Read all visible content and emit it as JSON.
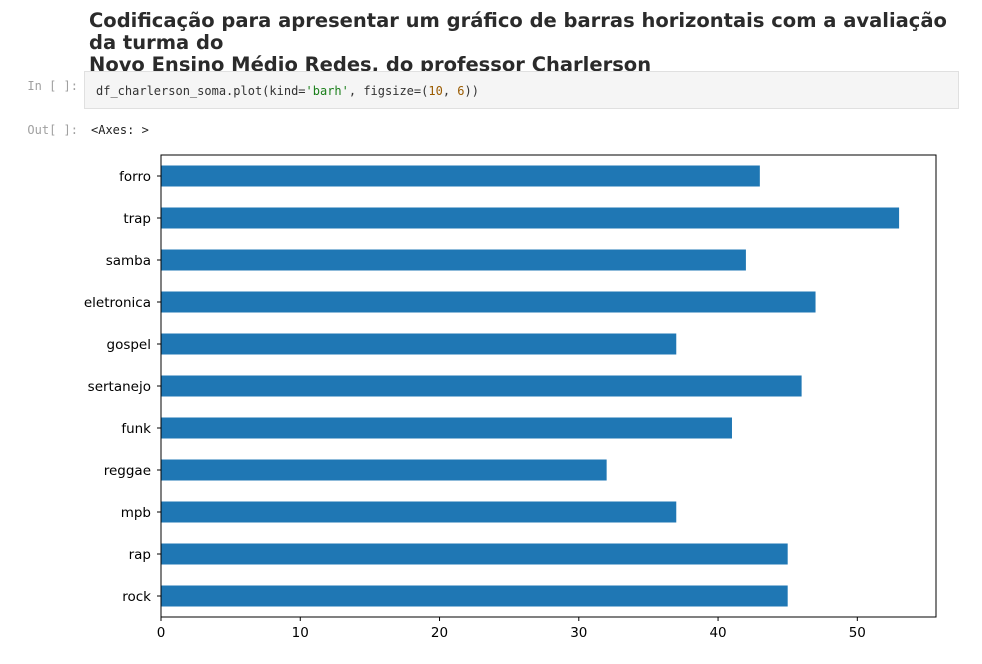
{
  "heading": {
    "line1": "Codificação para apresentar um gráfico de barras horizontais com a avaliação da turma do",
    "line2": "Novo Ensino Médio Redes, do professor Charlerson"
  },
  "input_cell": {
    "prompt": "In [ ]:",
    "code": {
      "part1": "df_charlerson_soma.plot(kind=",
      "str": "'barh'",
      "part2": ", figsize=(",
      "num1": "10",
      "sep": ", ",
      "num2": "6",
      "part3": "))"
    }
  },
  "output_cell": {
    "prompt": "Out[ ]:",
    "text": "<Axes: >"
  },
  "chart_data": {
    "type": "bar",
    "orientation": "horizontal",
    "categories": [
      "forro",
      "trap",
      "samba",
      "eletronica",
      "gospel",
      "sertanejo",
      "funk",
      "reggae",
      "mpb",
      "rap",
      "rock"
    ],
    "values": [
      43,
      53,
      42,
      47,
      37,
      46,
      41,
      32,
      37,
      45,
      45
    ],
    "xlim": [
      0,
      55.65
    ],
    "xticks": [
      0,
      10,
      20,
      30,
      40,
      50
    ],
    "xlabel": "",
    "ylabel": "",
    "legend": "none",
    "grid": false,
    "bar_color": "#1f77b4"
  }
}
